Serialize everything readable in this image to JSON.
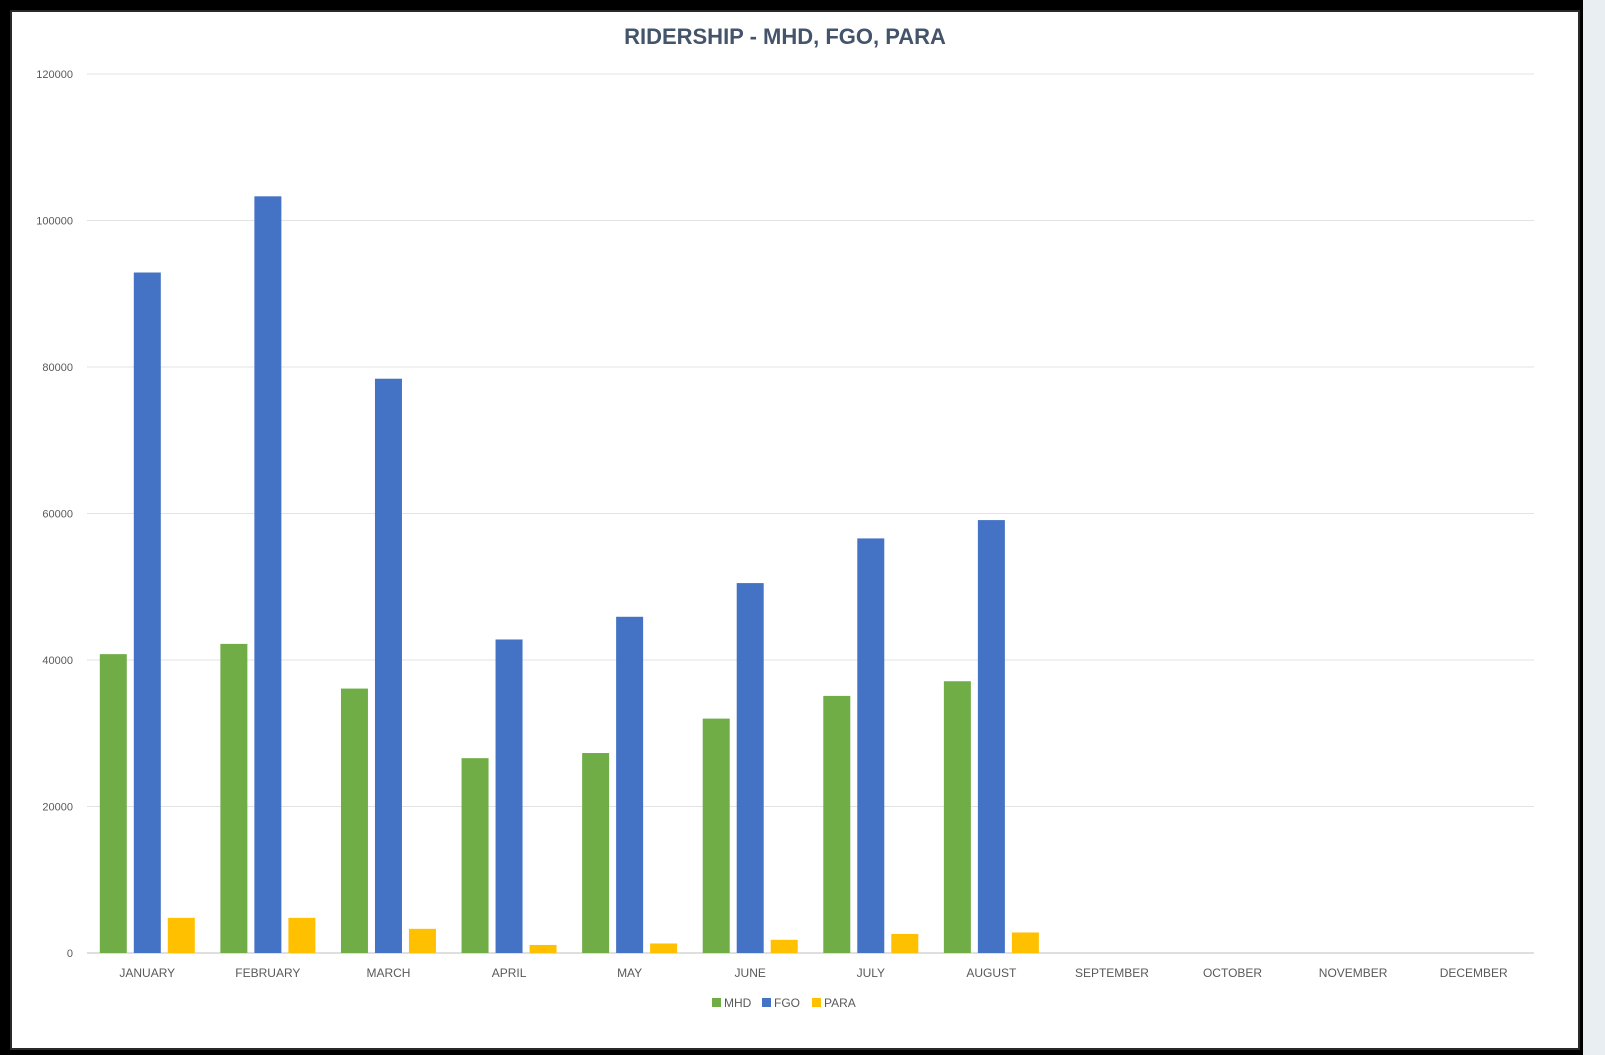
{
  "chart_data": {
    "type": "bar",
    "title": "RIDERSHIP - MHD, FGO, PARA",
    "xlabel": "",
    "ylabel": "",
    "ylim": [
      0,
      120000
    ],
    "yticks": [
      "0",
      "20000",
      "40000",
      "60000",
      "80000",
      "100000",
      "120000"
    ],
    "grid": true,
    "legend_position": "bottom",
    "categories": [
      "JANUARY",
      "FEBRUARY",
      "MARCH",
      "APRIL",
      "MAY",
      "JUNE",
      "JULY",
      "AUGUST",
      "SEPTEMBER",
      "OCTOBER",
      "NOVEMBER",
      "DECEMBER"
    ],
    "series": [
      {
        "name": "MHD",
        "color": "#70ad47",
        "values": [
          40800,
          42200,
          36100,
          26600,
          27300,
          32000,
          35100,
          37100,
          null,
          null,
          null,
          null
        ]
      },
      {
        "name": "FGO",
        "color": "#4472c4",
        "values": [
          92900,
          103300,
          78400,
          42800,
          45900,
          50500,
          56600,
          59100,
          null,
          null,
          null,
          null
        ]
      },
      {
        "name": "PARA",
        "color": "#ffc000",
        "values": [
          4800,
          4800,
          3300,
          1100,
          1300,
          1800,
          2600,
          2800,
          null,
          null,
          null,
          null
        ]
      }
    ]
  }
}
